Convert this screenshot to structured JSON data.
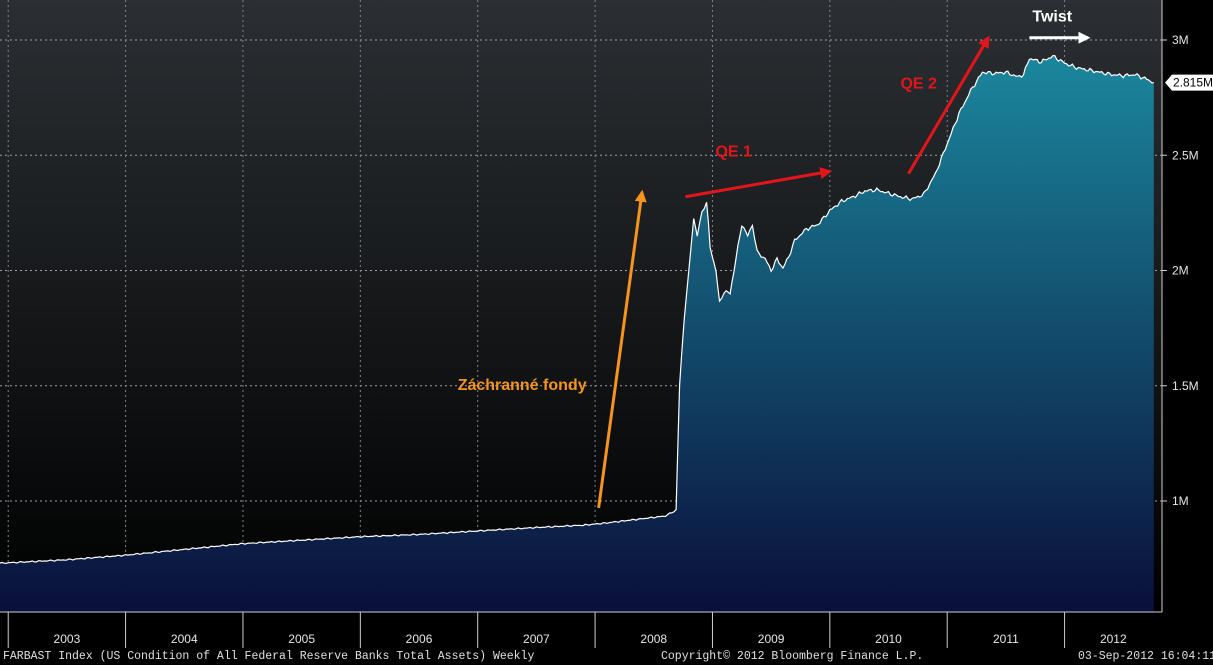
{
  "chart_data": {
    "type": "area",
    "title": "",
    "xlabel": "",
    "ylabel": "",
    "x_tick_labels": [
      "2003",
      "2004",
      "2005",
      "2006",
      "2007",
      "2008",
      "2009",
      "2010",
      "2011",
      "2012"
    ],
    "y_ticks": [
      1000000,
      1500000,
      2000000,
      2500000,
      3000000
    ],
    "y_tick_labels": [
      "1M",
      "1.5M",
      "2M",
      "2.5M",
      "3M"
    ],
    "xlim": [
      2002.93,
      2012.83
    ],
    "ylim": [
      500000,
      3200000
    ],
    "grid": true,
    "last_value_label": "2.815M",
    "colors": {
      "background_top": "#2b2f33",
      "background_bottom": "#000000",
      "fill_top": "#1b8aa0",
      "fill_bottom": "#0a0f3a",
      "line": "#ffffff",
      "orange_arrow": "#f7941d",
      "red_arrow": "#e2151b",
      "white_arrow": "#ffffff"
    },
    "series": [
      {
        "values": [
          [
            2002.93,
            730000
          ],
          [
            2003.5,
            745000
          ],
          [
            2004.0,
            765000
          ],
          [
            2004.5,
            790000
          ],
          [
            2005.0,
            815000
          ],
          [
            2005.5,
            830000
          ],
          [
            2006.0,
            845000
          ],
          [
            2006.5,
            855000
          ],
          [
            2007.0,
            870000
          ],
          [
            2007.5,
            885000
          ],
          [
            2007.9,
            895000
          ],
          [
            2008.1,
            905000
          ],
          [
            2008.35,
            920000
          ],
          [
            2008.6,
            935000
          ],
          [
            2008.69,
            960000
          ],
          [
            2008.72,
            1500000
          ],
          [
            2008.76,
            1800000
          ],
          [
            2008.8,
            2000000
          ],
          [
            2008.84,
            2230000
          ],
          [
            2008.87,
            2150000
          ],
          [
            2008.91,
            2250000
          ],
          [
            2008.95,
            2300000
          ],
          [
            2008.98,
            2100000
          ],
          [
            2009.03,
            2000000
          ],
          [
            2009.06,
            1860000
          ],
          [
            2009.1,
            1910000
          ],
          [
            2009.15,
            1900000
          ],
          [
            2009.2,
            2050000
          ],
          [
            2009.25,
            2200000
          ],
          [
            2009.3,
            2150000
          ],
          [
            2009.34,
            2200000
          ],
          [
            2009.38,
            2080000
          ],
          [
            2009.45,
            2050000
          ],
          [
            2009.5,
            2000000
          ],
          [
            2009.55,
            2050000
          ],
          [
            2009.6,
            2010000
          ],
          [
            2009.65,
            2060000
          ],
          [
            2009.7,
            2130000
          ],
          [
            2009.8,
            2180000
          ],
          [
            2009.9,
            2200000
          ],
          [
            2010.0,
            2260000
          ],
          [
            2010.1,
            2300000
          ],
          [
            2010.2,
            2320000
          ],
          [
            2010.3,
            2345000
          ],
          [
            2010.4,
            2350000
          ],
          [
            2010.5,
            2335000
          ],
          [
            2010.6,
            2320000
          ],
          [
            2010.7,
            2310000
          ],
          [
            2010.8,
            2330000
          ],
          [
            2010.9,
            2420000
          ],
          [
            2011.0,
            2550000
          ],
          [
            2011.1,
            2680000
          ],
          [
            2011.2,
            2780000
          ],
          [
            2011.3,
            2860000
          ],
          [
            2011.4,
            2855000
          ],
          [
            2011.5,
            2860000
          ],
          [
            2011.6,
            2840000
          ],
          [
            2011.65,
            2850000
          ],
          [
            2011.7,
            2920000
          ],
          [
            2011.8,
            2905000
          ],
          [
            2011.9,
            2930000
          ],
          [
            2012.0,
            2900000
          ],
          [
            2012.1,
            2880000
          ],
          [
            2012.2,
            2870000
          ],
          [
            2012.3,
            2860000
          ],
          [
            2012.4,
            2850000
          ],
          [
            2012.5,
            2845000
          ],
          [
            2012.6,
            2850000
          ],
          [
            2012.7,
            2830000
          ],
          [
            2012.76,
            2815000
          ]
        ]
      }
    ],
    "annotations": [
      {
        "text": "Záchranné fondy",
        "color": "#f7941d",
        "arrow_from": [
          2008.03,
          970000
        ],
        "arrow_to": [
          2008.4,
          2340000
        ]
      },
      {
        "text": "QE 1",
        "color": "#e2151b",
        "arrow_from": [
          2008.77,
          2320000
        ],
        "arrow_to": [
          2010.0,
          2430000
        ]
      },
      {
        "text": "QE 2",
        "color": "#e2151b",
        "arrow_from": [
          2010.67,
          2420000
        ],
        "arrow_to": [
          2011.35,
          3010000
        ]
      },
      {
        "text": "Twist",
        "color": "#ffffff",
        "arrow_from": [
          2011.7,
          3010000
        ],
        "arrow_to": [
          2012.2,
          3010000
        ]
      }
    ]
  },
  "footer": {
    "left": "FARBAST Index (US Condition of All Federal Reserve Banks Total Assets)  Weekly",
    "center": "Copyright© 2012 Bloomberg Finance L.P.",
    "right": "03-Sep-2012 16:04:11"
  }
}
